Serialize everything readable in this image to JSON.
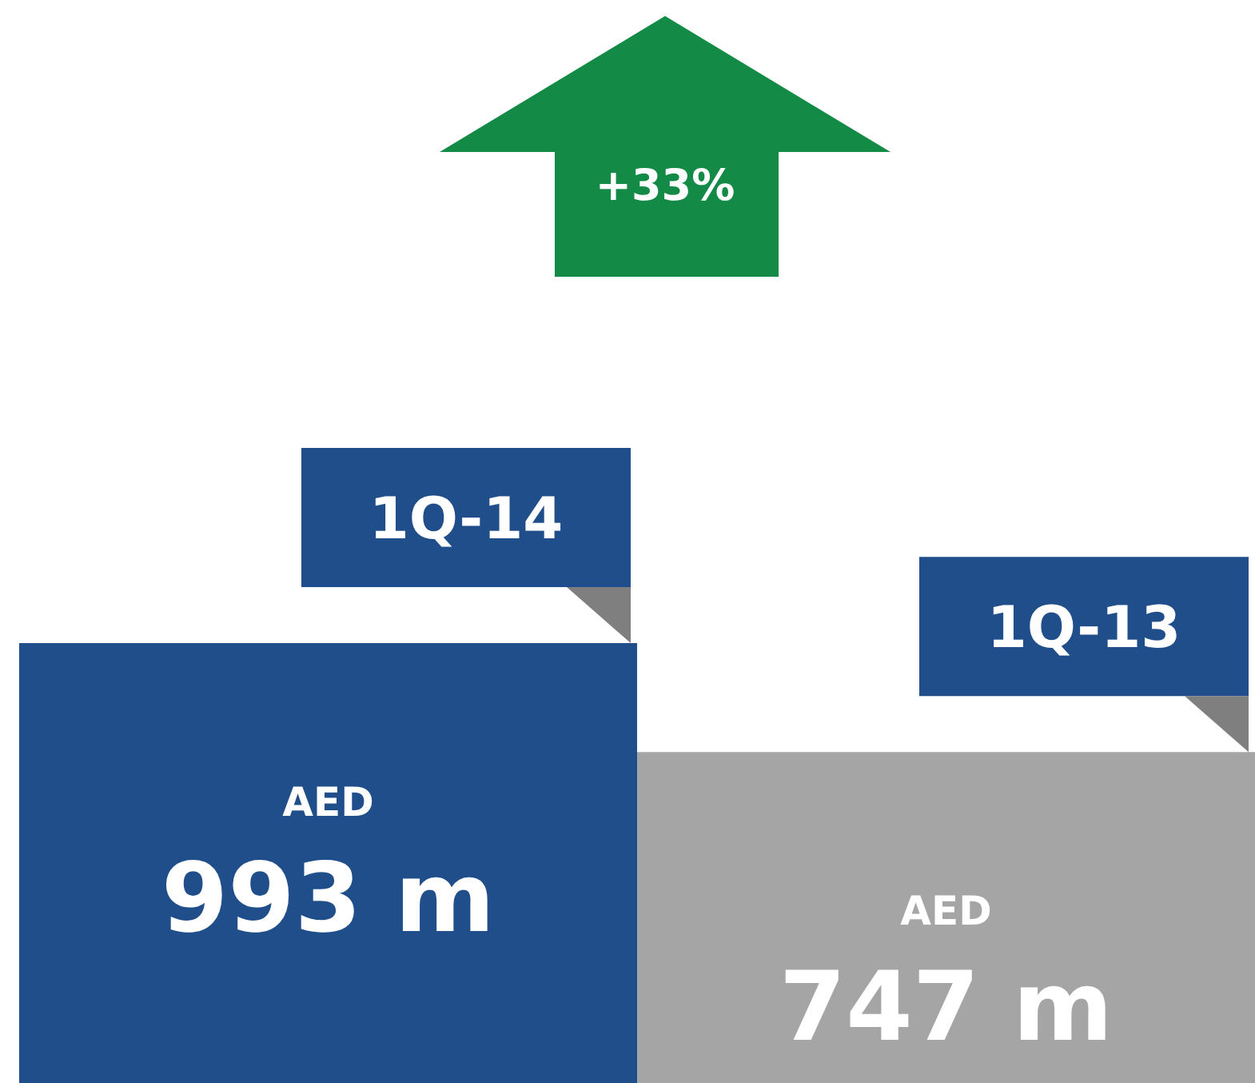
{
  "chart_data": {
    "type": "bar",
    "categories": [
      "1Q-14",
      "1Q-13"
    ],
    "values": [
      993,
      747
    ],
    "colors": [
      "#1f4e8a",
      "#a5a5a5"
    ],
    "value_labels": [
      "AED 993 m",
      "AED 747 m"
    ],
    "annotations": [
      "+33%"
    ]
  }
}
